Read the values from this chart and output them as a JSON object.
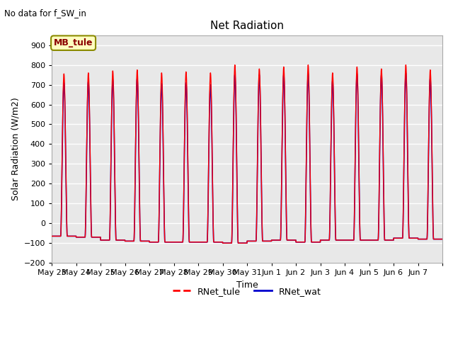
{
  "title": "Net Radiation",
  "subtitle": "No data for f_SW_in",
  "ylabel": "Solar Radiation (W/m2)",
  "xlabel": "Time",
  "ylim": [
    -200,
    950
  ],
  "yticks": [
    -200,
    -100,
    0,
    100,
    200,
    300,
    400,
    500,
    600,
    700,
    800,
    900
  ],
  "xtick_labels": [
    "May 23",
    "May 24",
    "May 25",
    "May 26",
    "May 27",
    "May 28",
    "May 29",
    "May 30",
    "May 31",
    "Jun 1",
    "Jun 2",
    "Jun 3",
    "Jun 4",
    "Jun 5",
    "Jun 6",
    "Jun 7"
  ],
  "color_tule": "#FF0000",
  "color_wat": "#0000CD",
  "legend_label_tule": "RNet_tule",
  "legend_label_wat": "RNet_wat",
  "annotation_box": "MB_tule",
  "bg_color": "#E8E8E8",
  "grid_color": "#FFFFFF",
  "n_days": 16,
  "peaks_tule": [
    755,
    760,
    770,
    775,
    760,
    765,
    760,
    800,
    780,
    790,
    800,
    760,
    790,
    780,
    800,
    775
  ],
  "peaks_wat": [
    710,
    715,
    725,
    730,
    705,
    710,
    700,
    750,
    750,
    750,
    755,
    720,
    755,
    750,
    760,
    730
  ],
  "troughs_tule": [
    -65,
    -70,
    -85,
    -90,
    -95,
    -95,
    -95,
    -100,
    -90,
    -85,
    -95,
    -85,
    -85,
    -85,
    -75,
    -80
  ],
  "troughs_wat": [
    -65,
    -70,
    -85,
    -90,
    -95,
    -95,
    -95,
    -100,
    -90,
    -85,
    -95,
    -85,
    -85,
    -85,
    -75,
    -80
  ],
  "figsize": [
    6.4,
    4.8
  ],
  "dpi": 100
}
